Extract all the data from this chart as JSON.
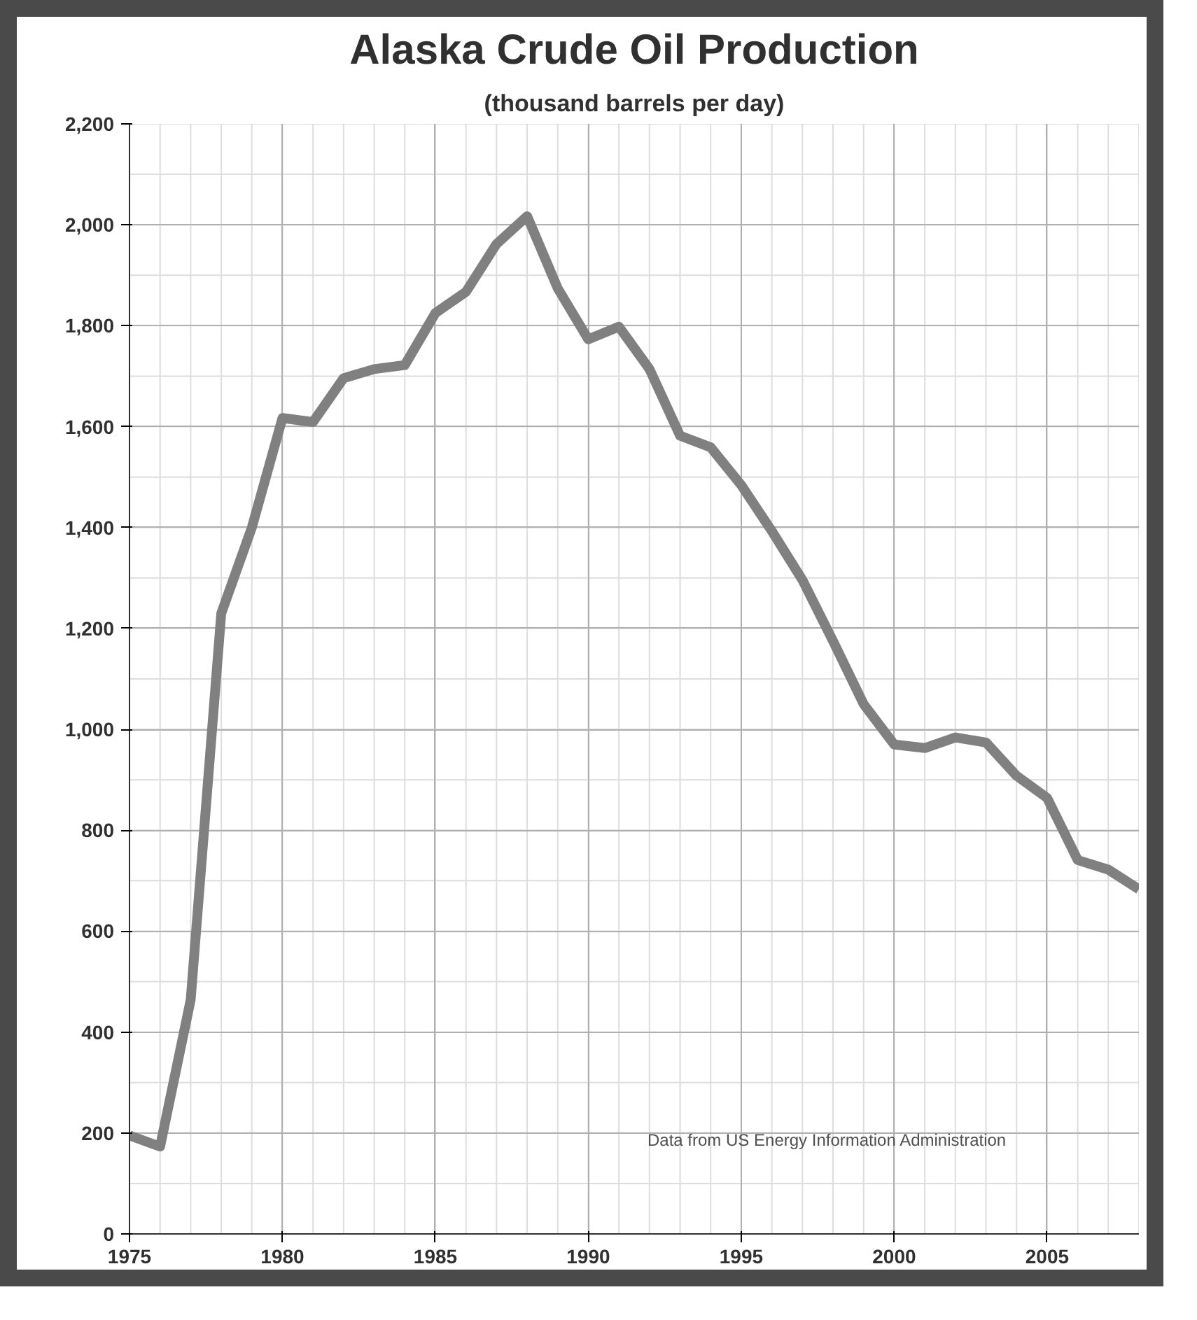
{
  "chart_data": {
    "type": "line",
    "title": "Alaska Crude Oil Production",
    "subtitle": "(thousand barrels per day)",
    "x": [
      1975,
      1976,
      1977,
      1978,
      1979,
      1980,
      1981,
      1982,
      1983,
      1984,
      1985,
      1986,
      1987,
      1988,
      1989,
      1990,
      1991,
      1992,
      1993,
      1994,
      1995,
      1996,
      1997,
      1998,
      1999,
      2000,
      2001,
      2002,
      2003,
      2004,
      2005,
      2006,
      2007,
      2008
    ],
    "series": [
      {
        "color": "#808080",
        "values": [
          195,
          173,
          464,
          1230,
          1400,
          1617,
          1609,
          1696,
          1714,
          1722,
          1825,
          1867,
          1962,
          2017,
          1874,
          1773,
          1798,
          1714,
          1582,
          1559,
          1484,
          1393,
          1296,
          1175,
          1050,
          970,
          963,
          984,
          974,
          908,
          864,
          741,
          722,
          683
        ]
      }
    ],
    "xlim": [
      1975,
      2008
    ],
    "xticks": [
      1975,
      1980,
      1985,
      1990,
      1995,
      2000,
      2005
    ],
    "ylim": [
      0,
      2200
    ],
    "yticks": [
      {
        "value": 0,
        "label": "0"
      },
      {
        "value": 200,
        "label": "200"
      },
      {
        "value": 400,
        "label": "400"
      },
      {
        "value": 600,
        "label": "600"
      },
      {
        "value": 800,
        "label": "800"
      },
      {
        "value": 1000,
        "label": "1,000"
      },
      {
        "value": 1200,
        "label": "1,200"
      },
      {
        "value": 1400,
        "label": "1,400"
      },
      {
        "value": 1600,
        "label": "1,600"
      },
      {
        "value": 1800,
        "label": "1,800"
      },
      {
        "value": 2000,
        "label": "2,000"
      },
      {
        "value": 2200,
        "label": "2,200"
      }
    ],
    "grid": true,
    "marker": "none",
    "line_style": "solid",
    "annotations": [
      "Data from US Energy Information Administration"
    ]
  }
}
